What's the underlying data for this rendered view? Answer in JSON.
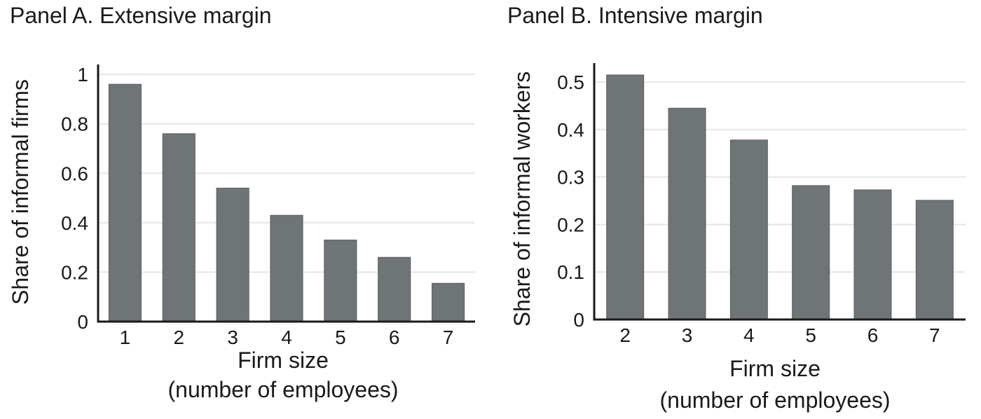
{
  "chart_data": [
    {
      "type": "bar",
      "title": "Panel A. Extensive margin",
      "xlabel": [
        "Firm size",
        "(number of employees)"
      ],
      "ylabel": "Share of informal firms",
      "categories": [
        "1",
        "2",
        "3",
        "4",
        "5",
        "6",
        "7"
      ],
      "values": [
        0.96,
        0.76,
        0.54,
        0.43,
        0.33,
        0.26,
        0.155
      ],
      "ylim": [
        0,
        1.04
      ],
      "yticks": [
        0,
        0.2,
        0.4,
        0.6,
        0.8,
        1
      ],
      "ytick_labels": [
        "0",
        "0.2",
        "0.4",
        "0.6",
        "0.8",
        "1"
      ],
      "grid": true,
      "colors": {
        "bar": "#6f7477"
      }
    },
    {
      "type": "bar",
      "title": "Panel B. Intensive margin",
      "xlabel": [
        "Firm size",
        "(number of employees)"
      ],
      "ylabel": "Share of informal workers",
      "categories": [
        "2",
        "3",
        "4",
        "5",
        "6",
        "7"
      ],
      "values": [
        0.515,
        0.445,
        0.378,
        0.282,
        0.273,
        0.251
      ],
      "ylim": [
        0,
        0.54
      ],
      "yticks": [
        0,
        0.1,
        0.2,
        0.3,
        0.4,
        0.5
      ],
      "ytick_labels": [
        "0",
        "0.1",
        "0.2",
        "0.3",
        "0.4",
        "0.5"
      ],
      "grid": true,
      "colors": {
        "bar": "#6f7477"
      }
    }
  ]
}
